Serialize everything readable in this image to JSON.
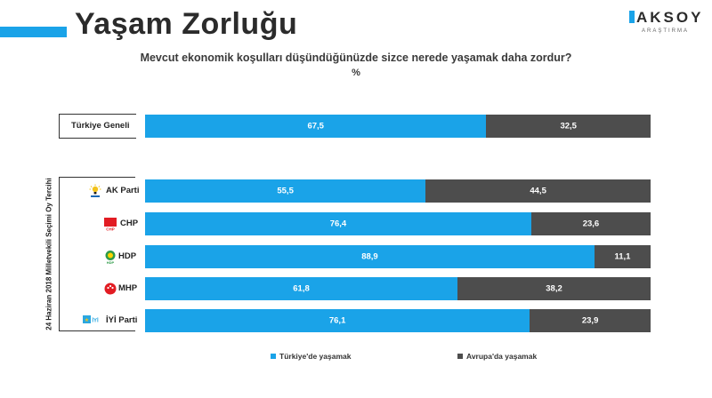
{
  "header": {
    "title": "Yaşam Zorluğu",
    "logo_main": "AKSOY",
    "logo_sub": "ARAŞTIRMA"
  },
  "chart_data": {
    "type": "bar",
    "orientation": "horizontal",
    "stacked": true,
    "title": "Mevcut ekonomik koşulları düşündüğünüzde sizce nerede yaşamak daha zordur?",
    "unit": "%",
    "group_label": "24 Haziran 2018 Milletvekili Seçimi Oy Tercihi",
    "categories": [
      "Türkiye Geneli",
      "AK Parti",
      "CHP",
      "HDP",
      "MHP",
      "İYİ Parti"
    ],
    "series": [
      {
        "name": "Türkiye'de yaşamak",
        "color": "#1aa3e8",
        "values": [
          67.5,
          55.5,
          76.4,
          88.9,
          61.8,
          76.1
        ],
        "labels": [
          "67,5",
          "55,5",
          "76,4",
          "88,9",
          "61,8",
          "76,1"
        ]
      },
      {
        "name": "Avrupa'da yaşamak",
        "color": "#4d4d4d",
        "values": [
          32.5,
          44.5,
          23.6,
          11.1,
          38.2,
          23.9
        ],
        "labels": [
          "32,5",
          "44,5",
          "23,6",
          "11,1",
          "38,2",
          "23,9"
        ]
      }
    ],
    "xlim": [
      0,
      100
    ],
    "legend": "bottom",
    "grid": false
  },
  "party_icons": [
    "ak-parti-logo-icon",
    "chp-logo-icon",
    "hdp-logo-icon",
    "mhp-logo-icon",
    "iyi-parti-logo-icon"
  ],
  "party_icon_texts": [
    "CHP",
    "HDP",
    "İYİ"
  ]
}
